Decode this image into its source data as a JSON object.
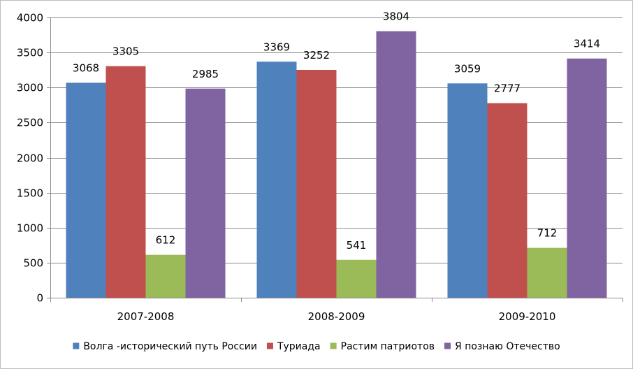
{
  "chart_data": {
    "type": "bar",
    "title": "",
    "xlabel": "",
    "ylabel": "",
    "categories": [
      "2007-2008",
      "2008-2009",
      "2009-2010"
    ],
    "series": [
      {
        "name": "Волга -исторический путь России",
        "color": "#4F81BD",
        "values": [
          3068,
          3369,
          3059
        ]
      },
      {
        "name": "Туриада",
        "color": "#C0504D",
        "values": [
          3305,
          3252,
          2777
        ]
      },
      {
        "name": "Растим патриотов",
        "color": "#9BBB59",
        "values": [
          612,
          541,
          712
        ]
      },
      {
        "name": "Я познаю Отечество",
        "color": "#8064A2",
        "values": [
          2985,
          3804,
          3414
        ]
      }
    ],
    "ylim": [
      0,
      4000
    ],
    "yticks": [
      "0",
      "500",
      "1000",
      "1500",
      "2000",
      "2500",
      "3000",
      "3500",
      "4000"
    ],
    "grid": true,
    "legend_position": "bottom",
    "data_labels": true
  }
}
